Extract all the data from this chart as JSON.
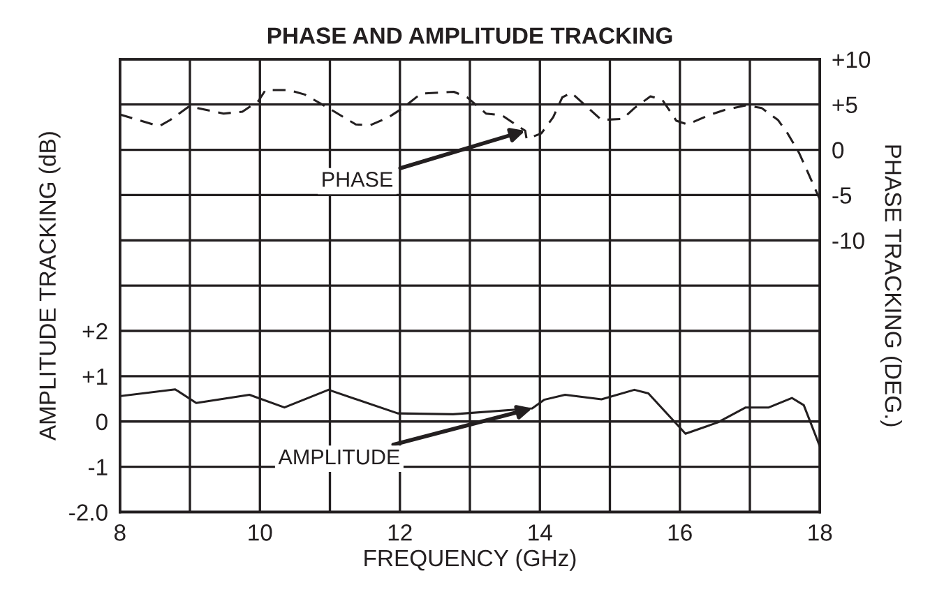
{
  "chart_data": {
    "type": "line",
    "title": "PHASE AND AMPLITUDE TRACKING",
    "xlabel": "FREQUENCY (GHz)",
    "ylabel": "AMPLITUDE TRACKING (dB)",
    "y2label": "PHASE TRACKING (DEG.)",
    "xlim": [
      8,
      18
    ],
    "xticks": [
      8,
      {
        "value": 9,
        "label": null
      },
      10,
      {
        "value": 11,
        "label": null
      },
      12,
      {
        "value": 13,
        "label": null
      },
      14,
      {
        "value": 15,
        "label": null
      },
      16,
      {
        "value": 17,
        "label": null
      },
      18
    ],
    "ylim": [
      -2,
      8
    ],
    "yticks": [
      {
        "value": -2,
        "label": "-2.0"
      },
      {
        "value": -1,
        "label": "-1"
      },
      0,
      {
        "value": 1,
        "label": "+1"
      },
      {
        "value": 2,
        "label": "+2"
      },
      {
        "value": 3,
        "label": null
      },
      {
        "value": 4,
        "label": null
      },
      {
        "value": 5,
        "label": null
      },
      {
        "value": 6,
        "label": null
      },
      {
        "value": 7,
        "label": null
      },
      {
        "value": 8,
        "label": null
      }
    ],
    "y2lim": [
      -40,
      10
    ],
    "y2ticks": [
      {
        "value": 10,
        "label": "+10"
      },
      {
        "value": 5,
        "label": "+5"
      },
      0,
      {
        "value": -5,
        "label": "-5"
      },
      {
        "value": -10,
        "label": "-10"
      }
    ],
    "grid": true,
    "marker": "none",
    "series": [
      {
        "axis": "y2",
        "color": "#231f20",
        "line_style": "dashed",
        "x": [
          8.0,
          8.56,
          8.72,
          8.99,
          9.48,
          9.75,
          9.98,
          10.08,
          10.41,
          10.64,
          10.98,
          11.37,
          11.57,
          11.84,
          12.04,
          12.3,
          12.77,
          12.96,
          13.23,
          13.46,
          13.69,
          13.79,
          13.81,
          14.02,
          14.19,
          14.32,
          14.45,
          14.72,
          14.88,
          15.18,
          15.35,
          15.58,
          15.75,
          15.95,
          16.11,
          16.41,
          16.64,
          16.94,
          17.17,
          17.4,
          17.54,
          17.7,
          17.8,
          18.0
        ],
        "values": [
          3.9,
          2.6,
          3.3,
          4.8,
          4.0,
          4.2,
          5.4,
          6.6,
          6.6,
          6.1,
          4.6,
          2.8,
          2.7,
          3.6,
          4.6,
          6.2,
          6.4,
          5.8,
          4.0,
          3.8,
          2.6,
          2.1,
          1.2,
          1.8,
          3.6,
          5.8,
          6.3,
          4.4,
          3.3,
          3.4,
          4.6,
          5.9,
          5.5,
          3.2,
          2.8,
          3.8,
          4.4,
          4.9,
          4.6,
          3.3,
          1.8,
          -0.3,
          -2.0,
          -5.5
        ]
      },
      {
        "axis": "y",
        "color": "#231f20",
        "line_style": "solid",
        "x": [
          8.0,
          8.79,
          9.09,
          9.85,
          10.35,
          10.98,
          11.97,
          12.76,
          13.89,
          14.06,
          14.36,
          14.88,
          15.35,
          15.55,
          16.08,
          16.54,
          16.94,
          17.27,
          17.6,
          17.77,
          18.0
        ],
        "values": [
          0.56,
          0.71,
          0.41,
          0.59,
          0.31,
          0.7,
          0.18,
          0.16,
          0.29,
          0.48,
          0.59,
          0.49,
          0.7,
          0.62,
          -0.27,
          -0.02,
          0.31,
          0.31,
          0.52,
          0.36,
          -0.55
        ]
      }
    ],
    "annotations": [
      {
        "text": "PHASE",
        "x": 13.79,
        "y": 6.42
      },
      {
        "text": "AMPLITUDE",
        "x": 13.89,
        "y": 0.29
      }
    ]
  }
}
